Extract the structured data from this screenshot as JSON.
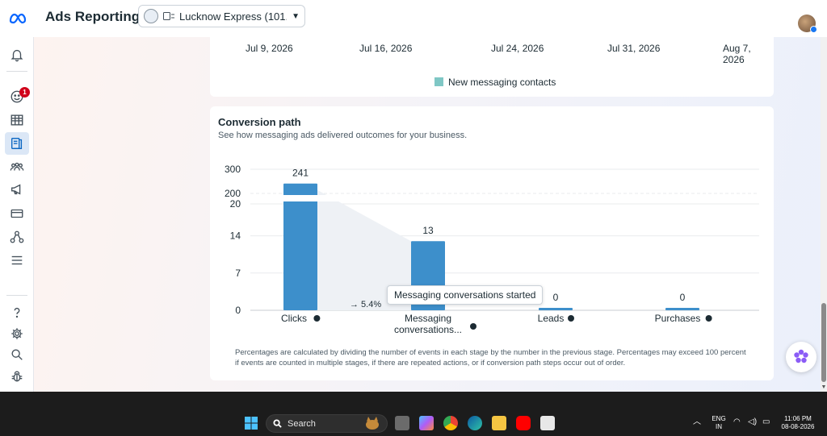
{
  "app": {
    "title": "Ads Reporting",
    "account_name": "Lucknow Express (101...",
    "accent_color": "#0a66c2",
    "bar_color": "#3d8fcb"
  },
  "sidebar": {
    "items": [
      {
        "name": "notifications",
        "icon": "bell-icon"
      },
      {
        "name": "activity",
        "icon": "smiley-icon",
        "badge": "1"
      },
      {
        "name": "table",
        "icon": "table-icon"
      },
      {
        "name": "ads-reporting",
        "icon": "reports-icon",
        "active": true
      },
      {
        "name": "audiences",
        "icon": "people-icon"
      },
      {
        "name": "campaigns",
        "icon": "megaphone-icon"
      },
      {
        "name": "billing",
        "icon": "card-icon"
      },
      {
        "name": "business",
        "icon": "network-icon"
      },
      {
        "name": "menu",
        "icon": "hamburger-icon"
      },
      {
        "name": "help",
        "icon": "question-icon"
      },
      {
        "name": "settings",
        "icon": "gear-icon"
      },
      {
        "name": "search",
        "icon": "search-icon"
      },
      {
        "name": "debug",
        "icon": "bug-icon"
      }
    ]
  },
  "top_chart": {
    "dates": [
      "Jul 9, 2026",
      "Jul 16, 2026",
      "Jul 24, 2026",
      "Jul 31, 2026",
      "Aug 7, 2026"
    ],
    "legend": "New messaging contacts",
    "legend_color": "#7fc7c5"
  },
  "conversion": {
    "title": "Conversion path",
    "subtitle": "See how messaging ads delivered outcomes for your business.",
    "footnote": "Percentages are calculated by dividing the number of events in each stage by the number in the previous stage. Percentages may exceed 100 percent if events are counted in multiple stages, if there are repeated actions, or if conversion path steps occur out of order.",
    "tooltip": "Messaging conversations started",
    "step_percent": "→ 5.4%"
  },
  "chart_data": {
    "type": "bar",
    "title": "",
    "categories": [
      "Clicks",
      "Messaging conversations...",
      "Leads",
      "Purchases"
    ],
    "values": [
      241,
      13,
      0,
      0
    ],
    "data_labels": [
      "241",
      "13",
      "0",
      "0"
    ],
    "y_ticks_lower": [
      "0",
      "7",
      "14",
      "20"
    ],
    "y_ticks_upper": [
      "200",
      "300"
    ],
    "axis_break": true,
    "grid": true,
    "bar_color": "#3d8fcb"
  },
  "taskbar": {
    "search_placeholder": "Search",
    "lang_top": "ENG",
    "lang_bottom": "IN",
    "time": "11:06 PM",
    "date": "08-08-2026"
  }
}
